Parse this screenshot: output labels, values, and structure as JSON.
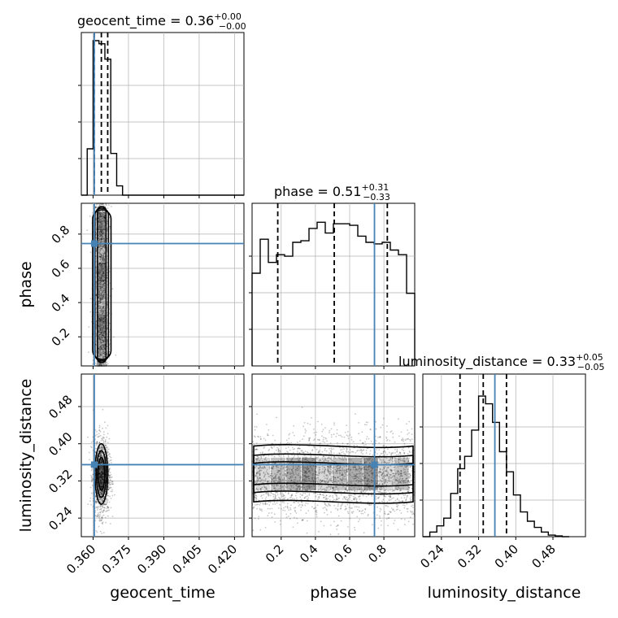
{
  "colors": {
    "truth": "#4682b4",
    "hist": "#000000",
    "grid": "#b0b0b0",
    "contour": "#000000"
  },
  "chart_data": {
    "type": "corner",
    "parameters": [
      {
        "name": "geocent_time",
        "range": [
          0.355,
          0.424
        ],
        "ticks": [
          0.36,
          0.375,
          0.39,
          0.405,
          0.42
        ],
        "tick_labels": [
          "0.360",
          "0.375",
          "0.390",
          "0.405",
          "0.420"
        ],
        "truth": 0.3605,
        "quantiles": [
          0.3605,
          0.3635,
          0.3662
        ]
      },
      {
        "name": "phase",
        "range": [
          0.03,
          0.98
        ],
        "ticks": [
          0.2,
          0.4,
          0.6,
          0.8
        ],
        "tick_labels": [
          "0.2",
          "0.4",
          "0.6",
          "0.8"
        ],
        "truth": 0.745,
        "quantiles": [
          0.18,
          0.51,
          0.82
        ]
      },
      {
        "name": "luminosity_distance",
        "range": [
          0.2,
          0.55
        ],
        "ticks": [
          0.24,
          0.32,
          0.4,
          0.48
        ],
        "tick_labels": [
          "0.24",
          "0.32",
          "0.40",
          "0.48"
        ],
        "truth": 0.355,
        "quantiles": [
          0.28,
          0.33,
          0.38
        ]
      }
    ],
    "titles": {
      "geocent_time": {
        "text": "geocent_time = 0.36",
        "sup": "+0.00",
        "sub": "−0.00"
      },
      "phase": {
        "text": "phase = 0.51",
        "sup": "+0.31",
        "sub": "−0.33"
      },
      "luminosity_distance": {
        "text": "luminosity_distance = 0.33",
        "sup": "+0.05",
        "sub": "−0.05"
      }
    },
    "histograms": {
      "geocent_time": {
        "edges": [
          0.355,
          0.3575,
          0.36,
          0.3625,
          0.365,
          0.3675,
          0.37,
          0.3725,
          0.375,
          0.424
        ],
        "counts": [
          0.0,
          0.3,
          1.0,
          0.98,
          0.88,
          0.27,
          0.06,
          0.0,
          0.0
        ]
      },
      "phase": {
        "edges": [
          0.03,
          0.0775,
          0.125,
          0.1725,
          0.22,
          0.2675,
          0.315,
          0.3625,
          0.41,
          0.4575,
          0.505,
          0.5525,
          0.6,
          0.6475,
          0.695,
          0.7425,
          0.79,
          0.8375,
          0.885,
          0.9325,
          0.98
        ],
        "counts": [
          0.6,
          0.82,
          0.67,
          0.72,
          0.71,
          0.8,
          0.81,
          0.89,
          0.93,
          0.86,
          0.92,
          0.92,
          0.91,
          0.84,
          0.8,
          0.79,
          0.8,
          0.75,
          0.72,
          0.47
        ]
      },
      "luminosity_distance": {
        "edges": [
          0.2,
          0.215,
          0.23,
          0.245,
          0.26,
          0.275,
          0.29,
          0.305,
          0.32,
          0.335,
          0.35,
          0.365,
          0.38,
          0.395,
          0.41,
          0.425,
          0.44,
          0.455,
          0.47,
          0.485,
          0.5,
          0.515
        ],
        "counts": [
          0.0,
          0.03,
          0.07,
          0.12,
          0.28,
          0.44,
          0.52,
          0.69,
          0.91,
          0.86,
          0.74,
          0.55,
          0.42,
          0.27,
          0.16,
          0.1,
          0.06,
          0.03,
          0.01,
          0.005,
          0.0
        ]
      }
    }
  }
}
